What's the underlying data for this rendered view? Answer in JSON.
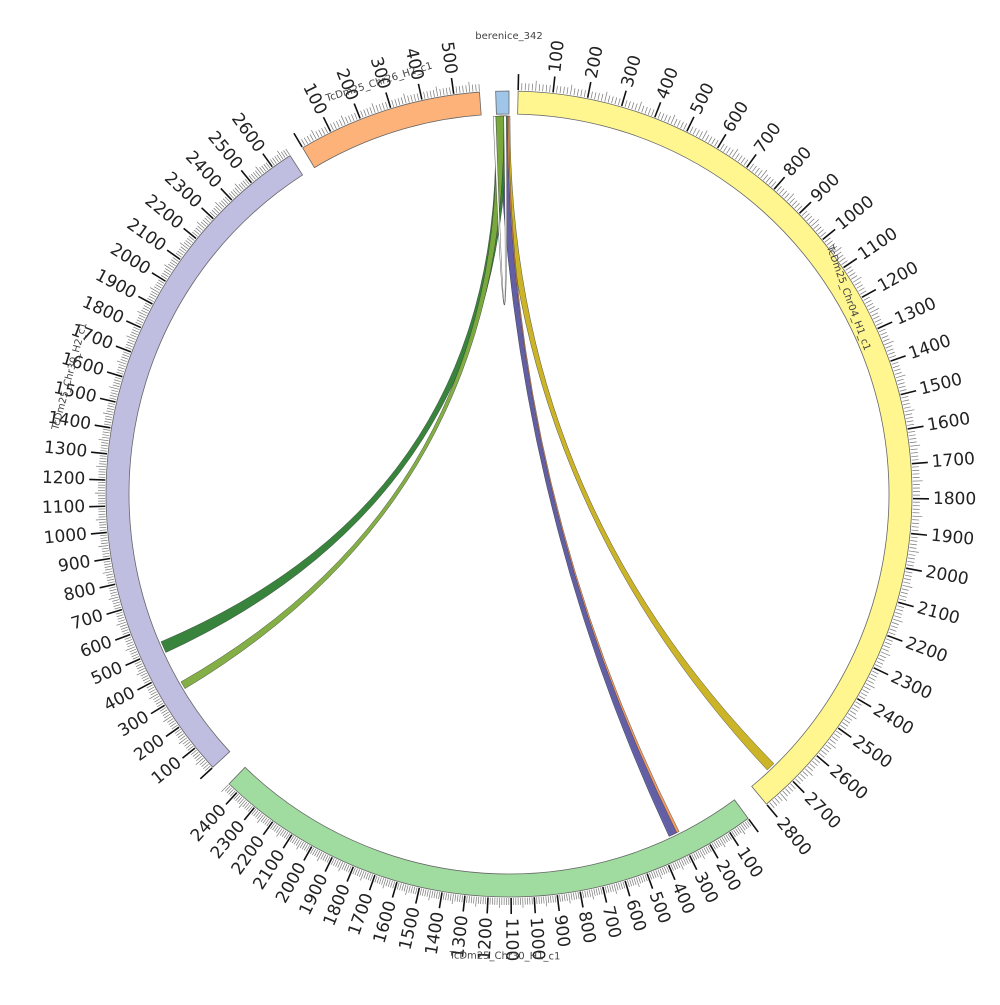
{
  "diagram": {
    "chromosomes": [
      {
        "id": "berenice",
        "name": "berenice_342",
        "length": 18,
        "color": "#9fc5e8",
        "major_ticks": []
      },
      {
        "id": "chr04",
        "name": "TcDm25_Chr04_H1_c1",
        "length": 2800,
        "color": "#fff68f",
        "major_ticks": [
          "100",
          "200",
          "300",
          "400",
          "500",
          "600",
          "700",
          "800",
          "900",
          "1000",
          "1100",
          "1200",
          "1300",
          "1400",
          "1500",
          "1600",
          "1700",
          "1800",
          "1900",
          "2000",
          "2100",
          "2200",
          "2300",
          "2400",
          "2500",
          "2600",
          "2700",
          "2800"
        ]
      },
      {
        "id": "chr30h1",
        "name": "TcDm25_Chr30_H1_c1",
        "length": 2450,
        "color": "#a0dba0",
        "major_ticks": [
          "100",
          "200",
          "300",
          "400",
          "500",
          "600",
          "700",
          "800",
          "900",
          "1000",
          "1100",
          "1200",
          "1300",
          "1400",
          "1500",
          "1600",
          "1700",
          "1800",
          "1900",
          "2000",
          "2100",
          "2200",
          "2300",
          "2400"
        ]
      },
      {
        "id": "chr30h2",
        "name": "TcDm25_Chr30_H2_c1",
        "length": 2680,
        "color": "#bfbde0",
        "major_ticks": [
          "100",
          "200",
          "300",
          "400",
          "500",
          "600",
          "700",
          "800",
          "900",
          "1000",
          "1100",
          "1200",
          "1300",
          "1400",
          "1500",
          "1600",
          "1700",
          "1800",
          "1900",
          "2000",
          "2100",
          "2200",
          "2300",
          "2400",
          "2500",
          "2600"
        ]
      },
      {
        "id": "chr26",
        "name": "TcDm25_Chr26_H2_c1",
        "length": 580,
        "color": "#fdb27a",
        "major_ticks": [
          "100",
          "200",
          "300",
          "400",
          "500"
        ]
      }
    ],
    "links": [
      {
        "to": "chr04",
        "color": "#c9b01e"
      },
      {
        "to": "chr30h1",
        "color": "#f0955a"
      },
      {
        "to": "chr30h1",
        "color": "#5c5ca8"
      },
      {
        "to": "chr30h2",
        "color": "#2e7d32"
      },
      {
        "to": "chr30h2",
        "color": "#7cab3c"
      },
      {
        "to": "berenice",
        "color": "#ffffff"
      }
    ]
  }
}
